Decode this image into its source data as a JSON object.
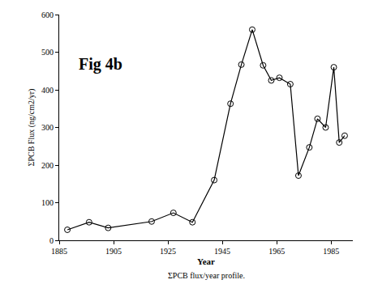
{
  "chart_data": {
    "type": "line",
    "title": "Fig 4b",
    "annotations": [
      "ΣPCB flux/year profile."
    ],
    "x_label": "Year",
    "y_label": "ΣPCB Flux (ng/cm2/yr)",
    "x": [
      1888,
      1896,
      1903,
      1919,
      1927,
      1934,
      1942,
      1948,
      1952,
      1956,
      1960,
      1963,
      1966,
      1970,
      1973,
      1977,
      1980,
      1983,
      1986,
      1988,
      1990
    ],
    "values": [
      28,
      48,
      33,
      50,
      73,
      48,
      160,
      363,
      467,
      560,
      465,
      425,
      432,
      415,
      172,
      247,
      323,
      300,
      460,
      260,
      278
    ],
    "color": "#000000",
    "marker": "circle-open",
    "xlim": [
      1885,
      1993
    ],
    "xticks": [
      1885,
      1905,
      1925,
      1945,
      1965,
      1985
    ],
    "ylim": [
      0,
      600
    ],
    "yticks": [
      0,
      100,
      200,
      300,
      400,
      500,
      600
    ],
    "grid": false
  }
}
